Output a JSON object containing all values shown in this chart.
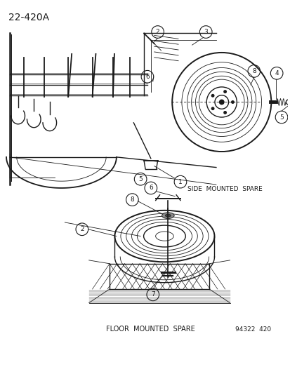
{
  "title_code": "22-420A",
  "label_side": "SIDE  MOUNTED  SPARE",
  "label_floor": "FLOOR  MOUNTED  SPARE",
  "doc_number": "94322  420",
  "bg_color": "#ffffff",
  "line_color": "#1a1a1a",
  "title_fontsize": 10,
  "label_fontsize": 7.5,
  "doc_fontsize": 7
}
